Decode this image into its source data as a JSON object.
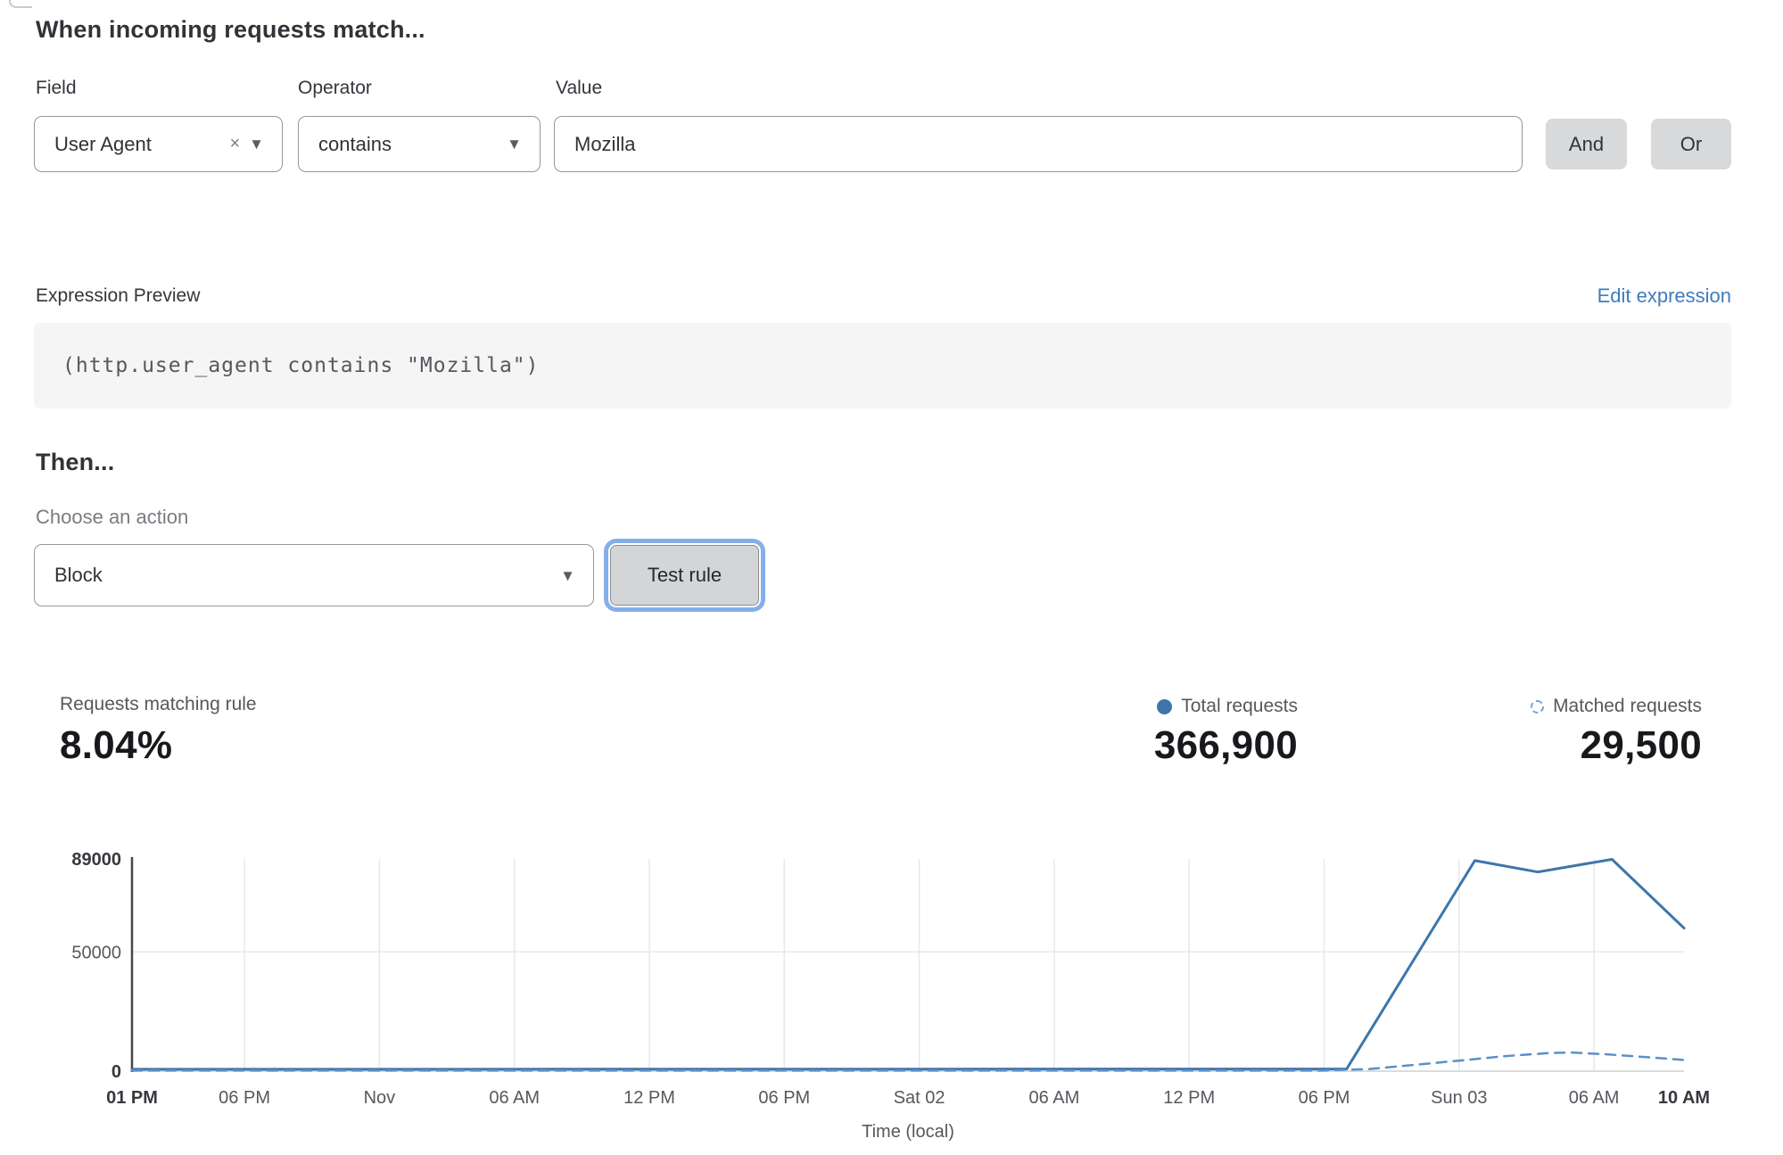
{
  "match_section": {
    "title": "When incoming requests match...",
    "field": {
      "label": "Field",
      "value": "User Agent"
    },
    "operator": {
      "label": "Operator",
      "value": "contains"
    },
    "value": {
      "label": "Value",
      "value": "Mozilla"
    },
    "and_label": "And",
    "or_label": "Or"
  },
  "expression": {
    "label": "Expression Preview",
    "edit_link": "Edit expression",
    "code": "(http.user_agent contains \"Mozilla\")"
  },
  "action_section": {
    "title": "Then...",
    "choose_label": "Choose an action",
    "action_value": "Block",
    "test_button": "Test rule"
  },
  "stats": {
    "matching": {
      "label": "Requests matching rule",
      "value": "8.04%"
    },
    "total": {
      "label": "Total requests",
      "value": "366,900"
    },
    "matched": {
      "label": "Matched requests",
      "value": "29,500"
    }
  },
  "icons": {
    "caret": "▼",
    "clear": "×"
  },
  "colors": {
    "accent_blue": "#3d76ab",
    "dashed_blue": "#5d8fc4",
    "link_blue": "#3e7cbe",
    "button_gray": "#d8d9db",
    "focus_ring": "#85afe9"
  },
  "chart_data": {
    "type": "line",
    "title": "",
    "xlabel": "Time (local)",
    "ylabel": "",
    "ylim": [
      0,
      89000
    ],
    "x_domain": [
      0,
      69
    ],
    "x_domain_note": "hours from Thu 01 PM (Oct 31) to Sun 10 AM (Nov 3)",
    "grid": true,
    "legend_position": "top-right",
    "yticks": [
      {
        "value": 0,
        "label": "0",
        "bold": true
      },
      {
        "value": 50000,
        "label": "50000"
      },
      {
        "value": 89000,
        "label": "89000",
        "bold": true
      }
    ],
    "xticks": [
      {
        "t": 0,
        "label": "01 PM",
        "bold": true,
        "grid": false
      },
      {
        "t": 5,
        "label": "06 PM"
      },
      {
        "t": 11,
        "label": "Nov"
      },
      {
        "t": 17,
        "label": "06 AM"
      },
      {
        "t": 23,
        "label": "12 PM"
      },
      {
        "t": 29,
        "label": "06 PM"
      },
      {
        "t": 35,
        "label": "Sat 02"
      },
      {
        "t": 41,
        "label": "06 AM"
      },
      {
        "t": 47,
        "label": "12 PM"
      },
      {
        "t": 53,
        "label": "06 PM"
      },
      {
        "t": 59,
        "label": "Sun 03"
      },
      {
        "t": 65,
        "label": "06 AM"
      },
      {
        "t": 69,
        "label": "10 AM",
        "bold": true,
        "grid": false
      }
    ],
    "series": [
      {
        "name": "Total requests",
        "style": "solid",
        "color": "#3d76ab",
        "points": [
          [
            0,
            800
          ],
          [
            54,
            900
          ],
          [
            59.7,
            88300
          ],
          [
            62.5,
            83500
          ],
          [
            65.8,
            88800
          ],
          [
            69,
            60000
          ]
        ]
      },
      {
        "name": "Matched requests",
        "style": "dashed",
        "color": "#5d8fc4",
        "points": [
          [
            0,
            300
          ],
          [
            53,
            300
          ],
          [
            55,
            900
          ],
          [
            57,
            2600
          ],
          [
            59,
            4400
          ],
          [
            61,
            6300
          ],
          [
            63,
            7600
          ],
          [
            64,
            7800
          ],
          [
            65.5,
            7100
          ],
          [
            67,
            6100
          ],
          [
            69,
            4700
          ]
        ]
      }
    ]
  }
}
